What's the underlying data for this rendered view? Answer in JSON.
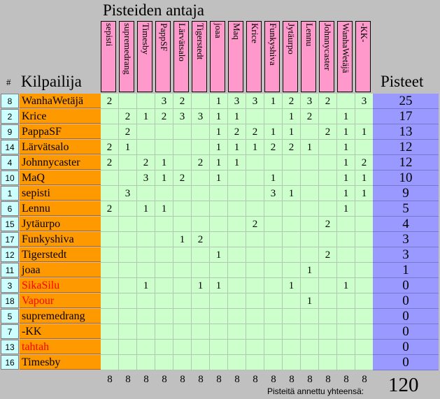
{
  "title": "Pisteiden antaja",
  "col_hash": "#",
  "col_contestant": "Kilpailija",
  "col_points": "Pisteet",
  "givers": [
    "sepisti",
    "supremedrang",
    "Timesby",
    "PappSF",
    "Lärvätsalo",
    "Tigerstedt",
    "joaa",
    "Maq",
    "Krice",
    "Funkyshiva",
    "Jytäurpo",
    "Lennu",
    "Johnnycaster",
    "WanhaWetäjä",
    "-KK-"
  ],
  "rows": [
    {
      "num": "8",
      "name": "WanhaWetäjä",
      "red": false,
      "scores": [
        "2",
        "",
        "",
        "3",
        "2",
        "",
        "1",
        "3",
        "3",
        "1",
        "2",
        "3",
        "2",
        "",
        "3"
      ],
      "total": "25"
    },
    {
      "num": "2",
      "name": "Krice",
      "red": false,
      "scores": [
        "",
        "2",
        "1",
        "2",
        "3",
        "3",
        "1",
        "1",
        "",
        "",
        "1",
        "2",
        "",
        "1",
        ""
      ],
      "total": "17"
    },
    {
      "num": "9",
      "name": "PappaSF",
      "red": false,
      "scores": [
        "",
        "2",
        "",
        "",
        "",
        "",
        "1",
        "2",
        "2",
        "1",
        "1",
        "",
        "2",
        "1",
        "1"
      ],
      "total": "13"
    },
    {
      "num": "14",
      "name": "Lärvätsalo",
      "red": false,
      "scores": [
        "2",
        "1",
        "",
        "",
        "",
        "",
        "1",
        "1",
        "1",
        "2",
        "2",
        "1",
        "",
        "1",
        ""
      ],
      "total": "12"
    },
    {
      "num": "4",
      "name": "Johnnycaster",
      "red": false,
      "scores": [
        "2",
        "",
        "2",
        "1",
        "",
        "2",
        "1",
        "1",
        "",
        "",
        "",
        "",
        "",
        "1",
        "2"
      ],
      "total": "12"
    },
    {
      "num": "10",
      "name": "MaQ",
      "red": false,
      "scores": [
        "",
        "",
        "3",
        "1",
        "2",
        "",
        "1",
        "",
        "",
        "1",
        "",
        "",
        "",
        "1",
        "1"
      ],
      "total": "10"
    },
    {
      "num": "1",
      "name": "sepisti",
      "red": false,
      "scores": [
        "",
        "3",
        "",
        "",
        "",
        "",
        "",
        "",
        "",
        "3",
        "1",
        "",
        "",
        "1",
        "1"
      ],
      "total": "9"
    },
    {
      "num": "6",
      "name": "Lennu",
      "red": false,
      "scores": [
        "2",
        "",
        "1",
        "1",
        "",
        "",
        "",
        "",
        "",
        "",
        "",
        "",
        "",
        "1",
        ""
      ],
      "total": "5"
    },
    {
      "num": "15",
      "name": "Jytäurpo",
      "red": false,
      "scores": [
        "",
        "",
        "",
        "",
        "",
        "",
        "",
        "",
        "2",
        "",
        "",
        "",
        "2",
        "",
        ""
      ],
      "total": "4"
    },
    {
      "num": "17",
      "name": "Funkyshiva",
      "red": false,
      "scores": [
        "",
        "",
        "",
        "",
        "1",
        "2",
        "",
        "",
        "",
        "",
        "",
        "",
        "",
        "",
        ""
      ],
      "total": "3"
    },
    {
      "num": "12",
      "name": "Tigerstedt",
      "red": false,
      "scores": [
        "",
        "",
        "",
        "",
        "",
        "",
        "1",
        "",
        "",
        "",
        "",
        "",
        "2",
        "",
        ""
      ],
      "total": "3"
    },
    {
      "num": "11",
      "name": "joaa",
      "red": false,
      "scores": [
        "",
        "",
        "",
        "",
        "",
        "",
        "",
        "",
        "",
        "",
        "",
        "1",
        "",
        "",
        ""
      ],
      "total": "1"
    },
    {
      "num": "3",
      "name": "SikaSilu",
      "red": true,
      "scores": [
        "",
        "",
        "1",
        "",
        "",
        "1",
        "1",
        "",
        "",
        "",
        "1",
        "",
        "",
        "1",
        ""
      ],
      "total": "0"
    },
    {
      "num": "18",
      "name": "Vapour",
      "red": true,
      "scores": [
        "",
        "",
        "",
        "",
        "",
        "",
        "",
        "",
        "",
        "",
        "",
        "1",
        "",
        "",
        ""
      ],
      "total": "0"
    },
    {
      "num": "5",
      "name": "supremedrang",
      "red": false,
      "scores": [
        "",
        "",
        "",
        "",
        "",
        "",
        "",
        "",
        "",
        "",
        "",
        "",
        "",
        "",
        ""
      ],
      "total": "0"
    },
    {
      "num": "7",
      "name": "-KK",
      "red": false,
      "scores": [
        "",
        "",
        "",
        "",
        "",
        "",
        "",
        "",
        "",
        "",
        "",
        "",
        "",
        "",
        ""
      ],
      "total": "0"
    },
    {
      "num": "13",
      "name": "tahtah",
      "red": true,
      "scores": [
        "",
        "",
        "",
        "",
        "",
        "",
        "",
        "",
        "",
        "",
        "",
        "",
        "",
        "",
        ""
      ],
      "total": "0"
    },
    {
      "num": "16",
      "name": "Timesby",
      "red": false,
      "scores": [
        "",
        "",
        "",
        "",
        "",
        "",
        "",
        "",
        "",
        "",
        "",
        "",
        "",
        "",
        ""
      ],
      "total": "0"
    }
  ],
  "column_totals": [
    "8",
    "8",
    "8",
    "8",
    "8",
    "8",
    "8",
    "8",
    "8",
    "8",
    "8",
    "8",
    "8",
    "8",
    "8"
  ],
  "footer_label": "Pisteitä annettu yhteensä:",
  "grand_total": "120",
  "colors": {
    "background": "#c0c0c0",
    "header": "#ff99cc",
    "name_cell": "#ff9900",
    "score_cell": "#ccffcc",
    "total_cell": "#9999ff",
    "num_cell": "#ccffff",
    "red_text": "#ff0000"
  }
}
